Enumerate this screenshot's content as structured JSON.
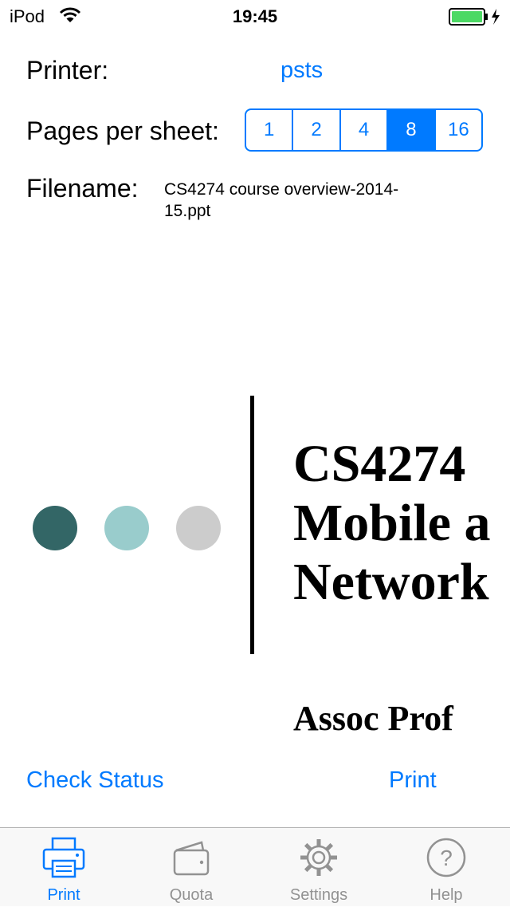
{
  "status_bar": {
    "carrier": "iPod",
    "time": "19:45",
    "battery_color": "#4cd964"
  },
  "printer": {
    "label": "Printer:",
    "value": "psts"
  },
  "pages_per_sheet": {
    "label": "Pages per sheet:",
    "options": [
      "1",
      "2",
      "4",
      "8",
      "16"
    ],
    "selected": "8"
  },
  "filename": {
    "label": "Filename:",
    "value": "CS4274 course overview-2014-15.ppt"
  },
  "preview": {
    "dot_colors": [
      "#336666",
      "#99cccc",
      "#cccccc"
    ],
    "title_lines": [
      "CS4274",
      "Mobile a",
      "Network"
    ],
    "subtitle": "Assoc Prof "
  },
  "actions": {
    "check_status": "Check Status",
    "print": "Print"
  },
  "tabbar": {
    "tabs": [
      {
        "label": "Print",
        "icon": "printer-icon",
        "active": true
      },
      {
        "label": "Quota",
        "icon": "wallet-icon",
        "active": false
      },
      {
        "label": "Settings",
        "icon": "gear-icon",
        "active": false
      },
      {
        "label": "Help",
        "icon": "help-icon",
        "active": false
      }
    ],
    "accent": "#007aff"
  }
}
